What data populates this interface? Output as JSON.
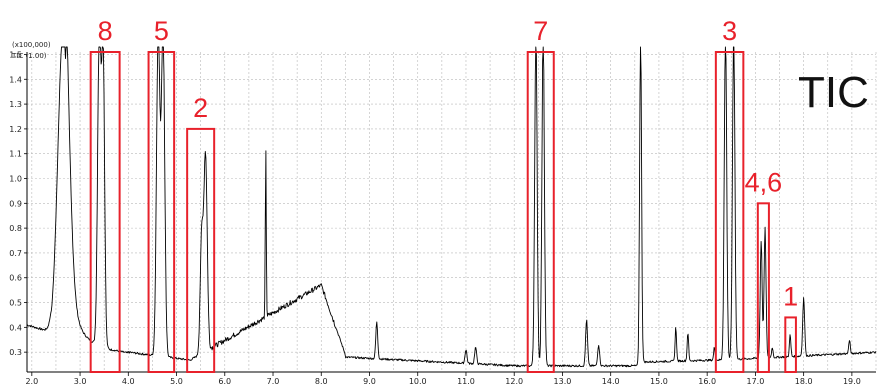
{
  "chart_data": {
    "type": "line",
    "title": "TIC",
    "scale_label": "(x100,000)",
    "series": [
      {
        "name": "TIC (1.00)"
      }
    ],
    "xlim": [
      1.9,
      19.5
    ],
    "ylim": [
      0.22,
      1.51
    ],
    "xticks": [
      2.0,
      3.0,
      4.0,
      5.0,
      6.0,
      7.0,
      8.0,
      9.0,
      10.0,
      11.0,
      12.0,
      13.0,
      14.0,
      15.0,
      16.0,
      17.0,
      18.0,
      19.0
    ],
    "yticks": [
      0.3,
      0.4,
      0.5,
      0.6,
      0.7,
      0.8,
      0.9,
      1.0,
      1.1,
      1.2,
      1.3,
      1.4,
      1.5
    ],
    "grid": true,
    "peaks": [
      {
        "x": 2.65,
        "y": 1.6,
        "w": 0.11
      },
      {
        "x": 3.4,
        "y": 1.6,
        "w": 0.035
      },
      {
        "x": 3.48,
        "y": 1.46,
        "w": 0.03
      },
      {
        "x": 4.62,
        "y": 1.6,
        "w": 0.035
      },
      {
        "x": 4.72,
        "y": 1.6,
        "w": 0.035
      },
      {
        "x": 5.6,
        "y": 1.1,
        "w": 0.035
      },
      {
        "x": 5.52,
        "y": 0.75,
        "w": 0.03
      },
      {
        "x": 6.85,
        "y": 1.11,
        "w": 0.01
      },
      {
        "x": 9.15,
        "y": 0.42,
        "w": 0.02
      },
      {
        "x": 11.0,
        "y": 0.31,
        "w": 0.02
      },
      {
        "x": 11.2,
        "y": 0.32,
        "w": 0.02
      },
      {
        "x": 12.45,
        "y": 1.6,
        "w": 0.025
      },
      {
        "x": 12.6,
        "y": 1.6,
        "w": 0.025
      },
      {
        "x": 13.5,
        "y": 0.43,
        "w": 0.02
      },
      {
        "x": 13.75,
        "y": 0.33,
        "w": 0.02
      },
      {
        "x": 14.62,
        "y": 1.6,
        "w": 0.02
      },
      {
        "x": 15.35,
        "y": 0.4,
        "w": 0.015
      },
      {
        "x": 15.6,
        "y": 0.38,
        "w": 0.015
      },
      {
        "x": 16.15,
        "y": 0.32,
        "w": 0.015
      },
      {
        "x": 16.38,
        "y": 1.6,
        "w": 0.025
      },
      {
        "x": 16.55,
        "y": 1.6,
        "w": 0.025
      },
      {
        "x": 17.12,
        "y": 0.75,
        "w": 0.02
      },
      {
        "x": 17.2,
        "y": 0.8,
        "w": 0.02
      },
      {
        "x": 17.35,
        "y": 0.32,
        "w": 0.015
      },
      {
        "x": 17.72,
        "y": 0.37,
        "w": 0.015
      },
      {
        "x": 18.0,
        "y": 0.52,
        "w": 0.02
      },
      {
        "x": 18.95,
        "y": 0.35,
        "w": 0.015
      }
    ],
    "annotations": [
      {
        "label": "8",
        "x0": 3.22,
        "x1": 3.82,
        "y0": 0.22,
        "y1": 1.51
      },
      {
        "label": "5",
        "x0": 4.42,
        "x1": 4.95,
        "y0": 0.22,
        "y1": 1.51
      },
      {
        "label": "2",
        "x0": 5.22,
        "x1": 5.78,
        "y0": 0.22,
        "y1": 1.2
      },
      {
        "label": "7",
        "x0": 12.28,
        "x1": 12.82,
        "y0": 0.22,
        "y1": 1.51
      },
      {
        "label": "3",
        "x0": 16.18,
        "x1": 16.75,
        "y0": 0.22,
        "y1": 1.51
      },
      {
        "label": "4,6",
        "x0": 17.05,
        "x1": 17.28,
        "y0": 0.22,
        "y1": 0.9
      },
      {
        "label": "1",
        "x0": 17.62,
        "x1": 17.84,
        "y0": 0.22,
        "y1": 0.44
      }
    ]
  }
}
